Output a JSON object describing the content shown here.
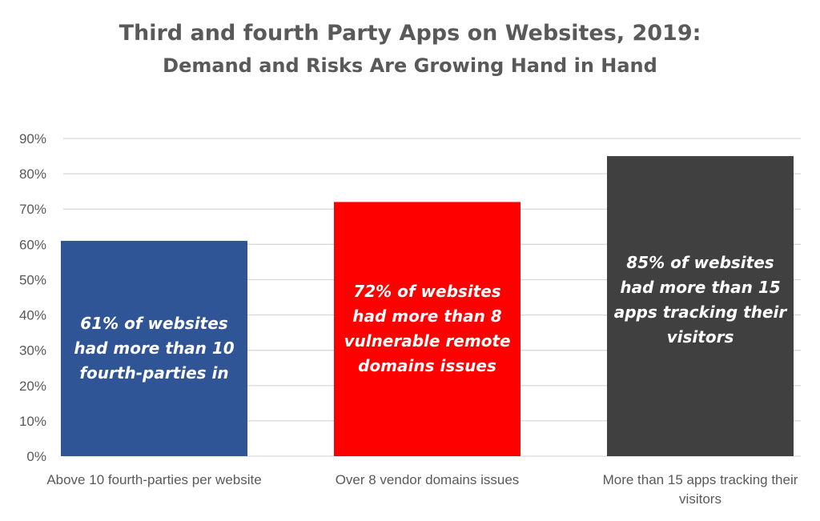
{
  "chart_data": {
    "type": "bar",
    "title": "Third and fourth Party Apps on Websites, 2019:",
    "subtitle": "Demand and Risks Are Growing Hand in Hand",
    "categories": [
      "Above 10 fourth-parties per website",
      "Over 8 vendor domains issues",
      "More than 15 apps tracking their visitors"
    ],
    "values": [
      61,
      72,
      85
    ],
    "colors": [
      "#2F5597",
      "#FF0000",
      "#404040"
    ],
    "data_labels": [
      "61% of websites had more than 10 fourth-parties in",
      "72% of websites had more than 8 vulnerable remote domains issues",
      "85% of websites had more than 15 apps tracking their visitors"
    ],
    "yticks": [
      "0%",
      "10%",
      "20%",
      "30%",
      "40%",
      "50%",
      "60%",
      "70%",
      "80%",
      "90%"
    ],
    "ylim": [
      0,
      90
    ],
    "grid": true,
    "xlabel": "",
    "ylabel": ""
  }
}
